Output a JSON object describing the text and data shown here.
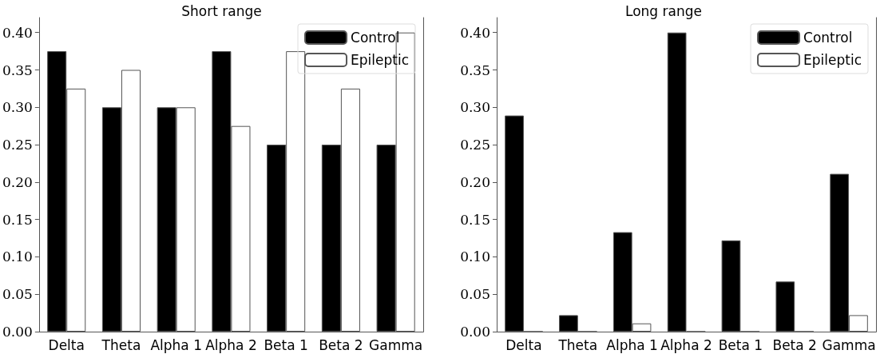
{
  "chart_data": [
    {
      "type": "bar",
      "title": "Short range",
      "categories": [
        "Delta",
        "Theta",
        "Alpha 1",
        "Alpha 2",
        "Beta 1",
        "Beta 2",
        "Gamma"
      ],
      "series": [
        {
          "name": "Control",
          "color": "#000000",
          "values": [
            0.375,
            0.3,
            0.3,
            0.375,
            0.25,
            0.25,
            0.25
          ]
        },
        {
          "name": "Epileptic",
          "color": "#ffffff",
          "values": [
            0.325,
            0.35,
            0.3,
            0.275,
            0.375,
            0.325,
            0.4
          ]
        }
      ],
      "ylim": [
        0,
        0.42
      ],
      "yticks": [
        {
          "value": 0,
          "label": "0.00"
        },
        {
          "value": 0.05,
          "label": "0.05"
        },
        {
          "value": 0.1,
          "label": "0.10"
        },
        {
          "value": 0.15,
          "label": "0.15"
        },
        {
          "value": 0.2,
          "label": "0.20"
        },
        {
          "value": 0.25,
          "label": "0.25"
        },
        {
          "value": 0.3,
          "label": "0.30"
        },
        {
          "value": 0.35,
          "label": "0.35"
        },
        {
          "value": 0.4,
          "label": "0.40"
        }
      ],
      "grid": false,
      "legend": "top right"
    },
    {
      "type": "bar",
      "title": "Long range",
      "categories": [
        "Delta",
        "Theta",
        "Alpha 1",
        "Alpha 2",
        "Beta 1",
        "Beta 2",
        "Gamma"
      ],
      "series": [
        {
          "name": "Control",
          "color": "#000000",
          "values": [
            0.289,
            0.022,
            0.133,
            0.4,
            0.122,
            0.067,
            0.211
          ]
        },
        {
          "name": "Epileptic",
          "color": "#ffffff",
          "values": [
            0,
            0,
            0.011,
            0,
            0,
            0,
            0.022
          ]
        }
      ],
      "ylim": [
        0,
        0.42
      ],
      "yticks": [
        {
          "value": 0,
          "label": "0.00"
        },
        {
          "value": 0.05,
          "label": "0.05"
        },
        {
          "value": 0.1,
          "label": "0.10"
        },
        {
          "value": 0.15,
          "label": "0.15"
        },
        {
          "value": 0.2,
          "label": "0.20"
        },
        {
          "value": 0.25,
          "label": "0.25"
        },
        {
          "value": 0.3,
          "label": "0.30"
        },
        {
          "value": 0.35,
          "label": "0.35"
        },
        {
          "value": 0.4,
          "label": "0.40"
        }
      ],
      "grid": false,
      "legend": "top right"
    }
  ]
}
